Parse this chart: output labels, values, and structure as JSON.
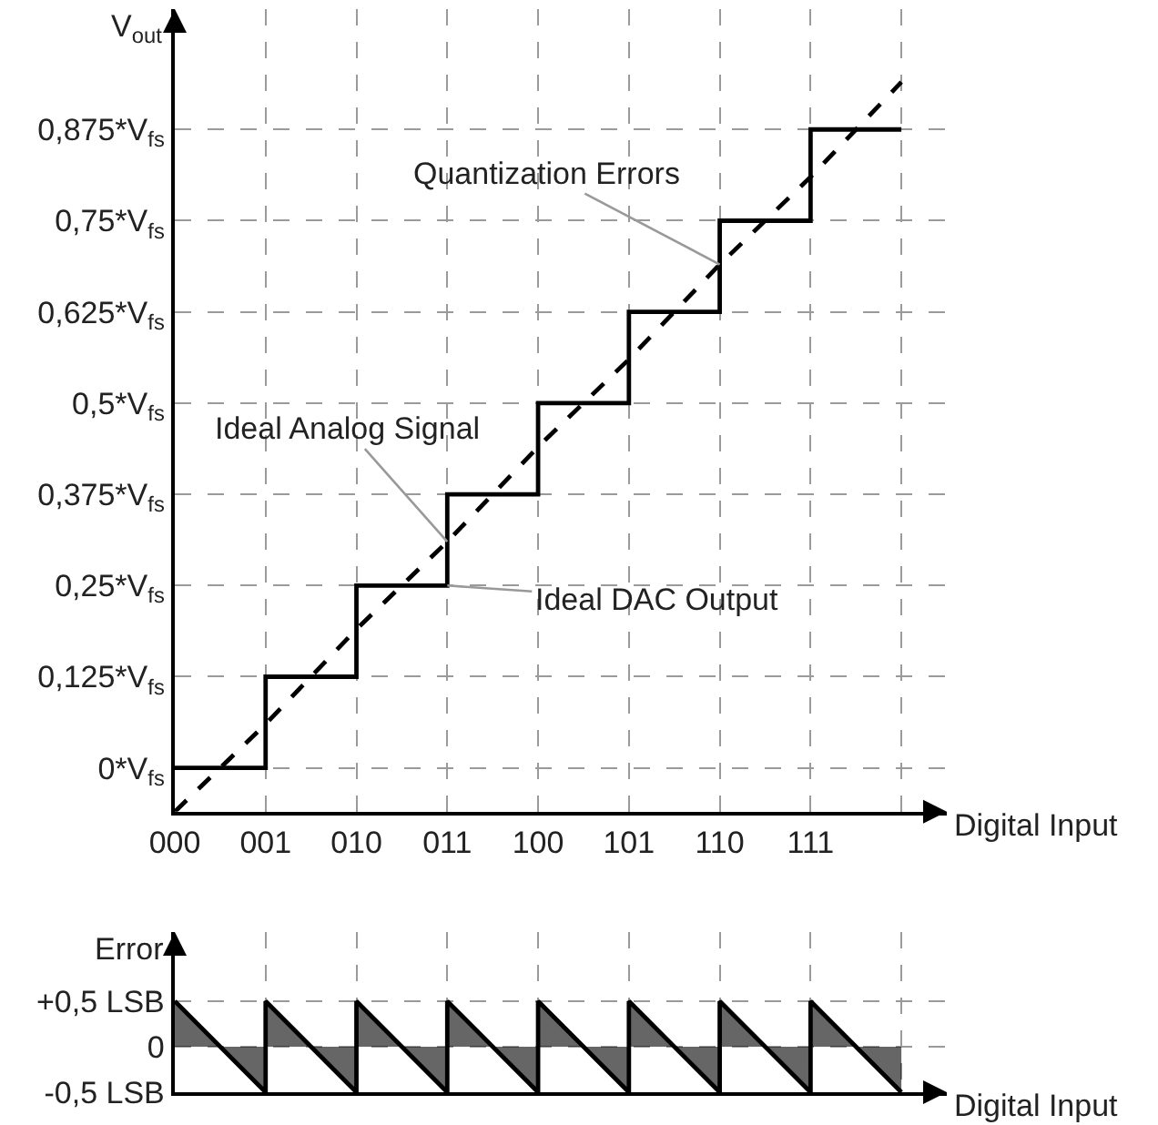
{
  "chart_data": [
    {
      "type": "step",
      "ylabel": "V$_{out}$",
      "xlabel": "Digital Input",
      "ylim": [
        -0.06,
        1.04
      ],
      "categories": [
        "000",
        "001",
        "010",
        "011",
        "100",
        "101",
        "110",
        "111",
        null
      ],
      "yticks": [
        {
          "value": 0,
          "label": "0*V$_{fs}$"
        },
        {
          "value": 0.125,
          "label": "0,125*V$_{fs}$"
        },
        {
          "value": 0.25,
          "label": "0,25*V$_{fs}$"
        },
        {
          "value": 0.375,
          "label": "0,375*V$_{fs}$"
        },
        {
          "value": 0.5,
          "label": "0,5*V$_{fs}$"
        },
        {
          "value": 0.625,
          "label": "0,625*V$_{fs}$"
        },
        {
          "value": 0.75,
          "label": "0,75*V$_{fs}$"
        },
        {
          "value": 0.875,
          "label": "0,875*V$_{fs}$"
        }
      ],
      "grid": true,
      "series": [
        {
          "color": "#000000",
          "values": [
            0,
            0.125,
            0.25,
            0.375,
            0.5,
            0.625,
            0.75,
            0.875,
            0.875
          ]
        },
        {
          "type": "line",
          "line_style": "dashed",
          "color": "#000000",
          "values": [
            -0.06,
            0.06,
            0.19,
            0.31,
            0.44,
            0.56,
            0.69,
            0.81,
            0.94
          ]
        }
      ],
      "annotations": [
        {
          "text": "Quantization Errors",
          "x": "110",
          "y": 0.69
        },
        {
          "text": "Ideal Analog Signal",
          "x": "011",
          "y": 0.31
        },
        {
          "text": "Ideal DAC Output",
          "x": "011",
          "y": 0.25
        }
      ]
    },
    {
      "type": "area",
      "ylabel": "Error",
      "xlabel": "Digital Input",
      "ylim": [
        -0.5,
        1.26
      ],
      "categories": [
        "000",
        "001",
        "010",
        "011",
        "100",
        "101",
        "110",
        "111",
        null
      ],
      "yticks": [
        {
          "value": -0.5,
          "label": "-0,5 LSB"
        },
        {
          "value": 0,
          "label": "0"
        },
        {
          "value": 0.5,
          "label": "+0,5 LSB"
        }
      ],
      "grid": true,
      "tick_labels": "y",
      "series": [
        {
          "color": "#000000",
          "x": [
            "000",
            "001",
            "001",
            "010",
            "010",
            "011",
            "011",
            "100",
            "100",
            "101",
            "101",
            "110",
            "110",
            "111",
            "111",
            null
          ],
          "values": [
            0.5,
            -0.5,
            0.5,
            -0.5,
            0.5,
            -0.5,
            0.5,
            -0.5,
            0.5,
            -0.5,
            0.5,
            -0.5,
            0.5,
            -0.5,
            0.5,
            -0.5
          ]
        }
      ]
    }
  ]
}
